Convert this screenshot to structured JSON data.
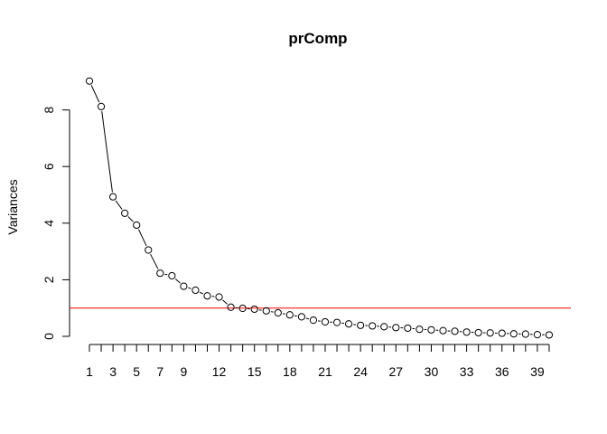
{
  "chart_data": {
    "type": "line",
    "title": "prComp",
    "xlabel": "",
    "ylabel": "Variances",
    "x": [
      1,
      2,
      3,
      4,
      5,
      6,
      7,
      8,
      9,
      10,
      11,
      12,
      13,
      14,
      15,
      16,
      17,
      18,
      19,
      20,
      21,
      22,
      23,
      24,
      25,
      26,
      27,
      28,
      29,
      30,
      31,
      32,
      33,
      34,
      35,
      36,
      37,
      38,
      39,
      40
    ],
    "values": [
      9.02,
      8.12,
      4.93,
      4.35,
      3.93,
      3.05,
      2.23,
      2.14,
      1.77,
      1.63,
      1.43,
      1.39,
      1.03,
      0.99,
      0.96,
      0.9,
      0.83,
      0.76,
      0.69,
      0.57,
      0.51,
      0.49,
      0.44,
      0.39,
      0.37,
      0.34,
      0.31,
      0.29,
      0.25,
      0.23,
      0.2,
      0.18,
      0.15,
      0.13,
      0.12,
      0.11,
      0.09,
      0.08,
      0.06,
      0.05
    ],
    "xticks": [
      1,
      3,
      5,
      7,
      9,
      12,
      15,
      18,
      21,
      24,
      27,
      30,
      33,
      36,
      39
    ],
    "yticks": [
      0,
      2,
      4,
      6,
      8
    ],
    "ylim": [
      0,
      9.3
    ],
    "reference_line": {
      "y": 1,
      "color": "#ff0000"
    },
    "marker": "open-circle",
    "grid": false
  }
}
